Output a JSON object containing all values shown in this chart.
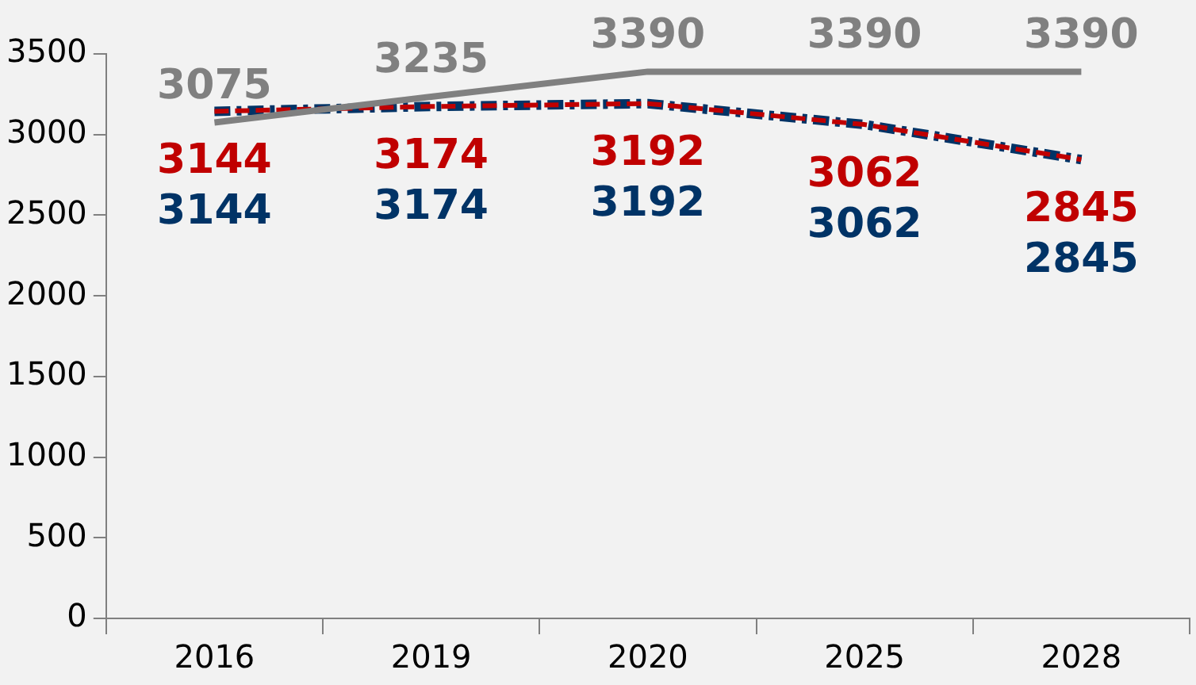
{
  "chart_data": {
    "type": "line",
    "categories": [
      "2016",
      "2019",
      "2020",
      "2025",
      "2028"
    ],
    "series": [
      {
        "color": "#808080",
        "line_style": "solid",
        "values": [
          3075,
          3235,
          3390,
          3390,
          3390
        ]
      },
      {
        "color": "#c00000",
        "line_style": "dashed",
        "values": [
          3144,
          3174,
          3192,
          3062,
          2845
        ]
      },
      {
        "color": "#003366",
        "line_style": "dashdot",
        "values": [
          3144,
          3174,
          3192,
          3062,
          2845
        ]
      }
    ],
    "ylim": [
      0,
      3500
    ],
    "yticks": [
      0,
      500,
      1000,
      1500,
      2000,
      2500,
      3000,
      3500
    ],
    "grid": false,
    "legend": false,
    "marker": "none",
    "data_labels": true
  }
}
